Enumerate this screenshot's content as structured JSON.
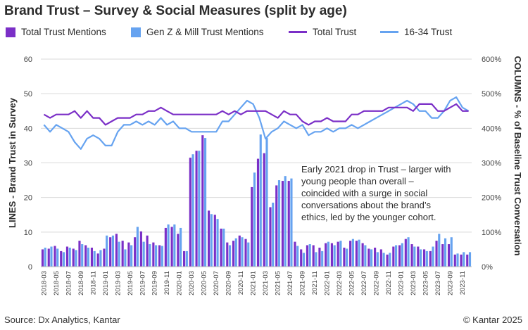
{
  "title": "Brand Trust – Survey & Social Measures (split by age)",
  "footer": {
    "source": "Source: Dx Analytics, Kantar",
    "copyright": "© Kantar 2025"
  },
  "colors": {
    "total_bar": "#7b2fc7",
    "genz_bar": "#66a3f0",
    "total_line": "#7b2fc7",
    "young_line": "#66a3f0",
    "grid": "#d9d9d9",
    "axis_text": "#444444"
  },
  "chart_data": {
    "type": "bar+line",
    "legend": [
      "Total Trust Mentions",
      "Gen Z & Mill Trust Mentions",
      "Total Trust",
      "16-34 Trust"
    ],
    "ylabel_left": "LINES - Brand Trust in Survey",
    "ylabel_right": "COLUMNS - % of Baseline Trust Conversation",
    "ylim_left": [
      0,
      60
    ],
    "ylim_right": [
      0,
      600
    ],
    "yticks_left": [
      "0",
      "10",
      "20",
      "30",
      "40",
      "50",
      "60"
    ],
    "yticks_right": [
      "0%",
      "100%",
      "200%",
      "300%",
      "400%",
      "500%",
      "600%"
    ],
    "x_tick_labels": [
      "2018-03",
      "2018-05",
      "2018-07",
      "2018-09",
      "2018-11",
      "2019-01",
      "2019-03",
      "2019-05",
      "2019-07",
      "2019-09",
      "2019-11",
      "2020-01",
      "2020-03",
      "2020-05",
      "2020-07",
      "2020-09",
      "2020-11",
      "2021-01",
      "2021-03",
      "2021-05",
      "2021-07",
      "2021-09",
      "2021-11",
      "2022-01",
      "2022-03",
      "2022-05",
      "2022-07",
      "2022-09",
      "2022-11",
      "2023-01",
      "2023-03",
      "2023-05",
      "2023-07",
      "2023-09",
      "2023-11"
    ],
    "x": [
      "2018-03",
      "2018-04",
      "2018-05",
      "2018-06",
      "2018-07",
      "2018-08",
      "2018-09",
      "2018-10",
      "2018-11",
      "2018-12",
      "2019-01",
      "2019-02",
      "2019-03",
      "2019-04",
      "2019-05",
      "2019-06",
      "2019-07",
      "2019-08",
      "2019-09",
      "2019-10",
      "2019-11",
      "2019-12",
      "2020-01",
      "2020-02",
      "2020-03",
      "2020-04",
      "2020-05",
      "2020-06",
      "2020-07",
      "2020-08",
      "2020-09",
      "2020-10",
      "2020-11",
      "2020-12",
      "2021-01",
      "2021-02",
      "2021-03",
      "2021-04",
      "2021-05",
      "2021-06",
      "2021-07",
      "2021-08",
      "2021-09",
      "2021-10",
      "2021-11",
      "2021-12",
      "2022-01",
      "2022-02",
      "2022-03",
      "2022-04",
      "2022-05",
      "2022-06",
      "2022-07",
      "2022-08",
      "2022-09",
      "2022-10",
      "2022-11",
      "2022-12",
      "2023-01",
      "2023-02",
      "2023-03",
      "2023-04",
      "2023-05",
      "2023-06",
      "2023-07",
      "2023-08",
      "2023-09",
      "2023-10",
      "2023-11",
      "2023-12"
    ],
    "series": [
      {
        "name": "Total Trust Mentions",
        "type": "bar",
        "axis": "right",
        "values": [
          50,
          52,
          60,
          45,
          58,
          52,
          75,
          62,
          55,
          38,
          52,
          85,
          95,
          75,
          70,
          85,
          102,
          90,
          70,
          62,
          112,
          115,
          95,
          45,
          315,
          335,
          380,
          162,
          150,
          110,
          70,
          75,
          90,
          80,
          230,
          312,
          328,
          172,
          235,
          248,
          248,
          72,
          50,
          62,
          62,
          55,
          68,
          68,
          72,
          55,
          75,
          75,
          68,
          52,
          55,
          50,
          35,
          58,
          62,
          80,
          65,
          58,
          50,
          45,
          75,
          65,
          65,
          35,
          35,
          35
        ]
      },
      {
        "name": "Gen Z & Mill Trust Mentions",
        "type": "bar",
        "axis": "right",
        "values": [
          55,
          58,
          52,
          42,
          55,
          48,
          65,
          55,
          45,
          48,
          90,
          90,
          72,
          50,
          62,
          115,
          72,
          65,
          62,
          60,
          122,
          122,
          112,
          45,
          325,
          335,
          372,
          152,
          138,
          110,
          62,
          82,
          85,
          70,
          272,
          382,
          372,
          185,
          250,
          262,
          255,
          60,
          40,
          65,
          42,
          45,
          72,
          62,
          75,
          52,
          80,
          78,
          62,
          50,
          42,
          40,
          40,
          62,
          68,
          85,
          58,
          50,
          45,
          58,
          95,
          82,
          85,
          38,
          42,
          42
        ]
      },
      {
        "name": "Total Trust",
        "type": "line",
        "axis": "left",
        "values": [
          44,
          43,
          44,
          44,
          44,
          45,
          43,
          45,
          43,
          43,
          41,
          42,
          43,
          43,
          43,
          44,
          44,
          45,
          45,
          46,
          45,
          44,
          44,
          44,
          44,
          44,
          44,
          44,
          44,
          45,
          44,
          45,
          44,
          45,
          45,
          45,
          45,
          44,
          43,
          45,
          44,
          44,
          42,
          41,
          42,
          42,
          43,
          42,
          42,
          42,
          44,
          44,
          45,
          45,
          45,
          45,
          46,
          46,
          46,
          46,
          45,
          47,
          47,
          47,
          45,
          45,
          46,
          47,
          45,
          45
        ]
      },
      {
        "name": "16-34 Trust",
        "type": "line",
        "axis": "left",
        "values": [
          41,
          39,
          41,
          40,
          39,
          36,
          34,
          37,
          38,
          37,
          35,
          35,
          39,
          41,
          41,
          42,
          41,
          42,
          41,
          43,
          41,
          42,
          40,
          40,
          39,
          39,
          39,
          39,
          39,
          42,
          42,
          44,
          46,
          48,
          47,
          43,
          37,
          39,
          40,
          42,
          41,
          40,
          41,
          38,
          39,
          39,
          40,
          39,
          40,
          40,
          41,
          40,
          41,
          42,
          43,
          44,
          45,
          46,
          47,
          48,
          47,
          45,
          45,
          43,
          43,
          45,
          48,
          49,
          46,
          45
        ]
      }
    ],
    "annotation": [
      "Early 2021 drop in Trust – larger with",
      "young people than overall –",
      "coincided with a surge in social",
      "conversations about the brand’s",
      "ethics, led by the younger cohort."
    ]
  }
}
